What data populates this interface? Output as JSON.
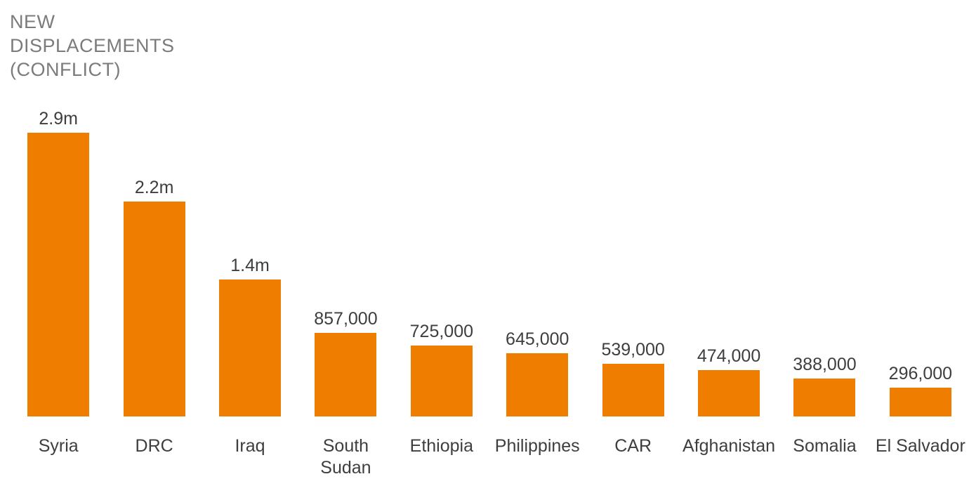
{
  "title": {
    "lines": [
      "NEW",
      "DISPLACEMENTS",
      "(CONFLICT)"
    ],
    "text": "NEW DISPLACEMENTS (CONFLICT)"
  },
  "colors": {
    "bar": "#ef7d00",
    "title_text": "#7b7b7b",
    "label_text": "#3e3e3e",
    "background": "#ffffff"
  },
  "chart_data": {
    "type": "bar",
    "orientation": "vertical",
    "title": "NEW DISPLACEMENTS (CONFLICT)",
    "xlabel": "",
    "ylabel": "",
    "grid": false,
    "legend": null,
    "ylim": [
      0,
      2900000
    ],
    "categories": [
      "Syria",
      "DRC",
      "Iraq",
      "South Sudan",
      "Ethiopia",
      "Philippines",
      "CAR",
      "Afghanistan",
      "Somalia",
      "El Salvador"
    ],
    "category_label_lines": [
      [
        "Syria"
      ],
      [
        "DRC"
      ],
      [
        "Iraq"
      ],
      [
        "South",
        "Sudan"
      ],
      [
        "Ethiopia"
      ],
      [
        "Philippines"
      ],
      [
        "CAR"
      ],
      [
        "Afghanistan"
      ],
      [
        "Somalia"
      ],
      [
        "El Salvador"
      ]
    ],
    "values": [
      2900000,
      2200000,
      1400000,
      857000,
      725000,
      645000,
      539000,
      474000,
      388000,
      296000
    ],
    "value_labels": [
      "2.9m",
      "2.2m",
      "1.4m",
      "857,000",
      "725,000",
      "645,000",
      "539,000",
      "474,000",
      "388,000",
      "296,000"
    ],
    "bar_color": "#ef7d00"
  }
}
